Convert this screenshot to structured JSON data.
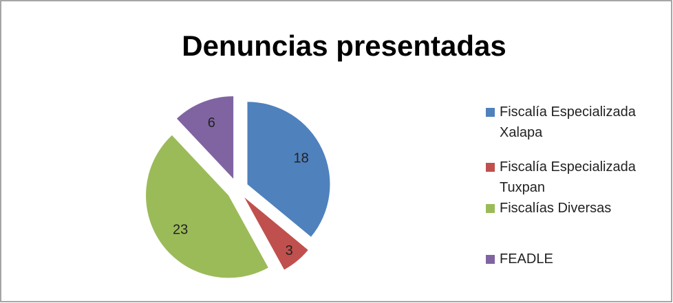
{
  "chart_data": {
    "type": "pie",
    "title": "Denuncias presentadas",
    "categories": [
      "Fiscalía Especializada Xalapa",
      "Fiscalía Especializada Tuxpan",
      "Fiscalías Diversas",
      "FEADLE"
    ],
    "values": [
      18,
      3,
      23,
      6
    ],
    "colors": [
      "#4f81bd",
      "#c0504d",
      "#9bbb59",
      "#8064a2"
    ],
    "legend": "right"
  }
}
